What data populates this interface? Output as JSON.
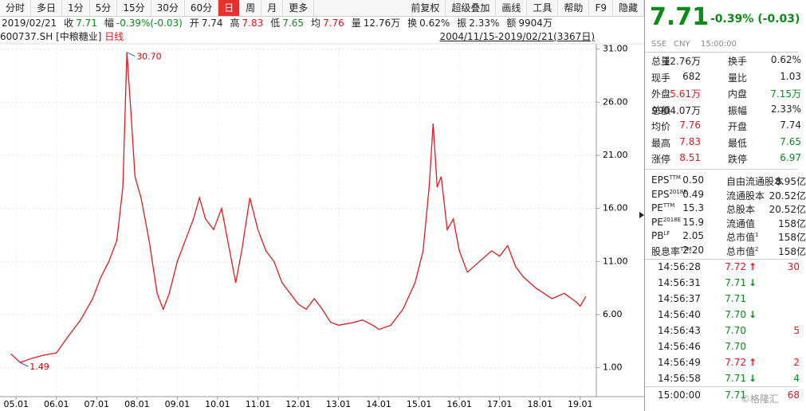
{
  "toolbar": {
    "left": [
      "分时",
      "多日",
      "1分",
      "5分",
      "15分",
      "30分",
      "60分",
      "日",
      "周",
      "月",
      "更多"
    ],
    "active": 7,
    "right": [
      "前复权",
      "超级叠加",
      "画线",
      "工具",
      "帮助",
      "F9",
      "隐藏"
    ]
  },
  "info": {
    "date": "2019/02/21",
    "items": [
      {
        "label": "收",
        "value": "7.71",
        "color": "down"
      },
      {
        "label": "幅",
        "value": "-0.39%(-0.03)",
        "color": "down"
      },
      {
        "label": "开",
        "value": "7.74"
      },
      {
        "label": "高",
        "value": "7.83",
        "color": "up"
      },
      {
        "label": "低",
        "value": "7.65",
        "color": "down"
      },
      {
        "label": "均",
        "value": "7.76",
        "color": "up"
      },
      {
        "label": "量",
        "value": "12.76万"
      },
      {
        "label": "换",
        "value": "0.62%"
      },
      {
        "label": "振",
        "value": "2.33%"
      },
      {
        "label": "额",
        "value": "9904万"
      }
    ]
  },
  "chart_data": {
    "type": "line",
    "symbol": "600737.SH",
    "name": "[中粮糖业]",
    "period": "日线",
    "range": "2004/11/15-2019/02/21(3367日)",
    "series": [
      {
        "color": "#d81e1e",
        "x": [
          2004.87,
          2005.1,
          2005.4,
          2005.7,
          2006.0,
          2006.3,
          2006.6,
          2006.9,
          2007.1,
          2007.3,
          2007.5,
          2007.65,
          2007.75,
          2007.85,
          2007.95,
          2008.1,
          2008.3,
          2008.5,
          2008.65,
          2008.8,
          2009.0,
          2009.2,
          2009.4,
          2009.55,
          2009.7,
          2009.9,
          2010.1,
          2010.3,
          2010.45,
          2010.6,
          2010.8,
          2011.0,
          2011.2,
          2011.4,
          2011.6,
          2011.8,
          2012.0,
          2012.2,
          2012.4,
          2012.6,
          2012.8,
          2013.0,
          2013.3,
          2013.6,
          2013.9,
          2014.0,
          2014.3,
          2014.6,
          2014.9,
          2015.1,
          2015.25,
          2015.35,
          2015.45,
          2015.55,
          2015.7,
          2015.85,
          2016.0,
          2016.2,
          2016.5,
          2016.8,
          2017.0,
          2017.2,
          2017.4,
          2017.6,
          2017.9,
          2018.1,
          2018.3,
          2018.6,
          2018.9,
          2019.0,
          2019.14
        ],
        "values": [
          2.3,
          1.49,
          1.9,
          2.2,
          2.4,
          4.0,
          5.5,
          7.5,
          9.5,
          11,
          13,
          18,
          30.7,
          25,
          19,
          17,
          13,
          8,
          6.5,
          8,
          11,
          13,
          15,
          17,
          15,
          14,
          16,
          12,
          9,
          12,
          17,
          14,
          12,
          11,
          9,
          8,
          7,
          6.5,
          7.5,
          6.5,
          5.3,
          5.0,
          5.2,
          5.5,
          4.9,
          4.6,
          5.0,
          6.5,
          9,
          12,
          18,
          24,
          18,
          19,
          14,
          15,
          12,
          10,
          11,
          12,
          11.5,
          12.5,
          10.5,
          9.5,
          8.5,
          8,
          7.5,
          8,
          7.2,
          6.8,
          7.71
        ]
      }
    ],
    "annotations": [
      {
        "x": 2007.75,
        "y": 30.7,
        "label": "30.70"
      },
      {
        "x": 2005.1,
        "y": 1.49,
        "label": "1.49"
      }
    ],
    "xlim": [
      2004.6,
      2019.4
    ],
    "xticks": [
      {
        "value": 2005,
        "label": "05.01"
      },
      {
        "value": 2006,
        "label": "06.01"
      },
      {
        "value": 2007,
        "label": "07.01"
      },
      {
        "value": 2008,
        "label": "08.01"
      },
      {
        "value": 2009,
        "label": "09.01"
      },
      {
        "value": 2010,
        "label": "10.01"
      },
      {
        "value": 2011,
        "label": "11.01"
      },
      {
        "value": 2012,
        "label": "12.01"
      },
      {
        "value": 2013,
        "label": "13.01"
      },
      {
        "value": 2014,
        "label": "14.01"
      },
      {
        "value": 2015,
        "label": "15.01"
      },
      {
        "value": 2016,
        "label": "16.01"
      },
      {
        "value": 2017,
        "label": "17.01"
      },
      {
        "value": 2018,
        "label": "18.01"
      },
      {
        "value": 2019,
        "label": "19.01"
      }
    ],
    "ylim": [
      -1.5,
      31.5
    ],
    "yticks": [
      {
        "value": 1,
        "label": "1.00"
      },
      {
        "value": 6,
        "label": "6.00"
      },
      {
        "value": 11,
        "label": "11.00"
      },
      {
        "value": 16,
        "label": "16.00"
      },
      {
        "value": 21,
        "label": "21.00"
      },
      {
        "value": 26,
        "label": "26.00"
      },
      {
        "value": 31,
        "label": "31.00"
      }
    ],
    "grid": true
  },
  "quote": {
    "price": "7.71",
    "change": "-0.39% (-0.03)",
    "exchange": "SSE",
    "currency": "CNY",
    "time": "15:00:00",
    "rows": [
      [
        {
          "l": "总量",
          "v": "12.76万"
        },
        {
          "l": "换手",
          "v": "0.62%"
        }
      ],
      [
        {
          "l": "现手",
          "v": "682"
        },
        {
          "l": "量比",
          "v": "1.03"
        }
      ],
      [
        {
          "l": "外盘",
          "v": "5.61万",
          "c": "up"
        },
        {
          "l": "内盘",
          "v": "7.15万",
          "c": "down"
        }
      ],
      [
        {
          "l": "总额",
          "v": "9904.07万"
        },
        {
          "l": "振幅",
          "v": "2.33%"
        }
      ],
      [
        {
          "l": "均价",
          "v": "7.76",
          "c": "up"
        },
        {
          "l": "开盘",
          "v": "7.74"
        }
      ],
      [
        {
          "l": "最高",
          "v": "7.83",
          "c": "up"
        },
        {
          "l": "最低",
          "v": "7.65",
          "c": "down"
        }
      ],
      [
        {
          "l": "涨停",
          "v": "8.51",
          "c": "up"
        },
        {
          "l": "跌停",
          "v": "6.97",
          "c": "down"
        }
      ]
    ],
    "fin": [
      [
        {
          "l": "EPS",
          "s": "TTM",
          "v": "0.50"
        },
        {
          "l": "自由流通股本",
          "v": "8.95亿"
        }
      ],
      [
        {
          "l": "EPS",
          "s": "2018E",
          "v": "0.49"
        },
        {
          "l": "流通股本",
          "v": "20.52亿"
        }
      ],
      [
        {
          "l": "PE",
          "s": "TTM",
          "v": "15.3"
        },
        {
          "l": "总股本",
          "v": "20.52亿"
        }
      ],
      [
        {
          "l": "PE",
          "s": "2018E",
          "v": "15.9"
        },
        {
          "l": "流通值",
          "v": "158亿"
        }
      ],
      [
        {
          "l": "PB",
          "s": "LF",
          "v": "2.05"
        },
        {
          "l": "总市值",
          "s": "1",
          "v": "158亿"
        }
      ],
      [
        {
          "l": "股息率",
          "s": "TTM",
          "v": "2.20"
        },
        {
          "l": "总市值",
          "s": "2",
          "v": "158亿"
        }
      ]
    ],
    "ticks": [
      {
        "t": "14:56:28",
        "p": "7.72",
        "d": "up",
        "vol": "30"
      },
      {
        "t": "14:56:31",
        "p": "7.71",
        "d": "down"
      },
      {
        "t": "14:56:37",
        "p": "7.71"
      },
      {
        "t": "14:56:40",
        "p": "7.70",
        "d": "down"
      },
      {
        "t": "14:56:43",
        "p": "7.70",
        "vol": "5"
      },
      {
        "t": "14:56:46",
        "p": "7.70"
      },
      {
        "t": "14:56:49",
        "p": "7.72",
        "d": "up",
        "vol": "2"
      },
      {
        "t": "14:56:58",
        "p": "7.71",
        "d": "down",
        "vol": "4"
      },
      {
        "t": "15:00:00",
        "p": "7.71",
        "vol": "68"
      }
    ],
    "watermark": "©格隆汇"
  }
}
